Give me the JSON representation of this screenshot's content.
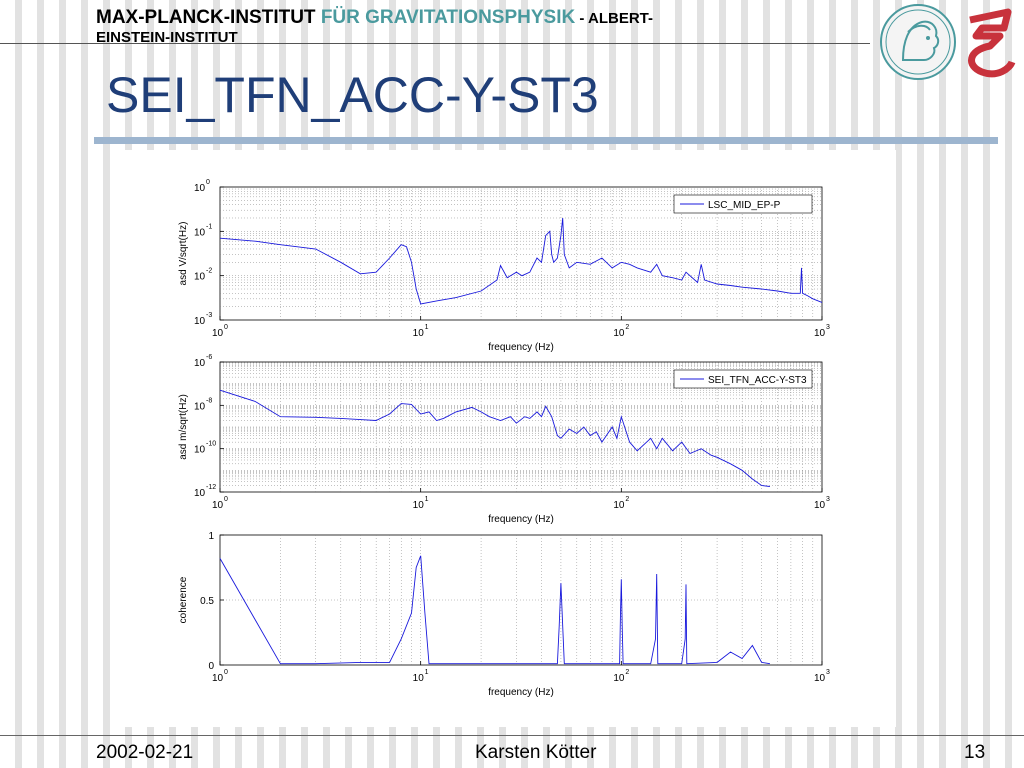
{
  "header": {
    "institute_part1": "MAX-PLANCK-INSTITUT ",
    "institute_part2": "FÜR GRAVITATIONSPHYSIK",
    "institute_part3": " - ALBERT-",
    "institute_part4": "EINSTEIN-INSTITUT"
  },
  "slide": {
    "title": "SEI_TFN_ACC-Y-ST3"
  },
  "footer": {
    "date": "2002-02-21",
    "author": "Karsten Kötter",
    "page": "13"
  },
  "colors": {
    "accent": "#4a9a9e",
    "title": "#1f3e78",
    "rule": "#9db5cf",
    "trace": "#1a1adc",
    "logo_red": "#c8323c"
  },
  "chart_data": [
    {
      "type": "line",
      "xscale": "log",
      "yscale": "log",
      "xlim": [
        1,
        1000
      ],
      "ylim": [
        0.001,
        1
      ],
      "x_ticks": [
        "10^0",
        "10^1",
        "10^2",
        "10^3"
      ],
      "y_ticks": [
        "10^-3",
        "10^-2",
        "10^-1",
        "10^0"
      ],
      "xlabel": "frequency (Hz)",
      "ylabel": "asd V/sqrt(Hz)",
      "grid": true,
      "legend": "top-right",
      "series": [
        {
          "name": "LSC_MID_EP-P",
          "x": [
            1,
            1.5,
            2,
            3,
            4,
            5,
            6,
            7,
            8,
            8.5,
            9,
            9.5,
            10,
            12,
            15,
            20,
            24,
            25,
            27,
            30,
            32,
            35,
            38,
            40,
            42,
            44,
            45,
            46,
            48,
            50,
            51,
            52,
            55,
            60,
            70,
            80,
            90,
            100,
            110,
            120,
            140,
            150,
            160,
            180,
            200,
            210,
            240,
            250,
            260,
            300,
            350,
            400,
            500,
            600,
            700,
            780,
            790,
            800,
            850,
            900,
            1000
          ],
          "y": [
            0.07,
            0.06,
            0.05,
            0.04,
            0.02,
            0.011,
            0.012,
            0.025,
            0.05,
            0.045,
            0.02,
            0.005,
            0.0023,
            0.0027,
            0.0032,
            0.0045,
            0.008,
            0.017,
            0.009,
            0.012,
            0.01,
            0.012,
            0.025,
            0.02,
            0.08,
            0.1,
            0.03,
            0.02,
            0.025,
            0.08,
            0.2,
            0.03,
            0.015,
            0.02,
            0.018,
            0.025,
            0.015,
            0.02,
            0.018,
            0.015,
            0.012,
            0.018,
            0.01,
            0.009,
            0.008,
            0.012,
            0.007,
            0.018,
            0.008,
            0.0065,
            0.006,
            0.0055,
            0.005,
            0.0045,
            0.004,
            0.004,
            0.015,
            0.004,
            0.0035,
            0.003,
            0.0025
          ]
        }
      ]
    },
    {
      "type": "line",
      "xscale": "log",
      "yscale": "log",
      "xlim": [
        1,
        1000
      ],
      "ylim": [
        1e-12,
        1e-06
      ],
      "x_ticks": [
        "10^0",
        "10^1",
        "10^2",
        "10^3"
      ],
      "y_ticks": [
        "10^-12",
        "10^-10",
        "10^-8",
        "10^-6"
      ],
      "xlabel": "frequency (Hz)",
      "ylabel": "asd m/sqrt(Hz)",
      "grid": true,
      "legend": "top-right",
      "series": [
        {
          "name": "SEI_TFN_ACC-Y-ST3",
          "x": [
            1,
            1.5,
            2,
            3,
            4,
            5,
            6,
            7,
            8,
            9,
            10,
            11,
            12,
            13,
            15,
            18,
            20,
            22,
            25,
            28,
            30,
            33,
            35,
            38,
            40,
            42,
            45,
            48,
            50,
            55,
            60,
            65,
            70,
            75,
            80,
            90,
            95,
            100,
            110,
            120,
            140,
            150,
            160,
            180,
            200,
            220,
            250,
            280,
            300,
            350,
            400,
            450,
            500,
            550
          ],
          "y": [
            5e-08,
            1.5e-08,
            3e-09,
            2.8e-09,
            2.5e-09,
            2.2e-09,
            2e-09,
            4e-09,
            1.2e-08,
            1.1e-08,
            4e-09,
            5e-09,
            2e-09,
            2.5e-09,
            5e-09,
            8e-09,
            5e-09,
            3e-09,
            2e-09,
            3e-09,
            1.5e-09,
            3e-09,
            2.5e-09,
            5e-09,
            3e-09,
            9e-09,
            3e-09,
            4e-10,
            3e-10,
            8e-10,
            5e-10,
            1e-09,
            4e-10,
            6e-10,
            2e-10,
            1e-09,
            3e-10,
            3e-09,
            2e-10,
            8e-11,
            3e-10,
            1e-10,
            3e-10,
            8e-11,
            2e-10,
            6e-11,
            1e-10,
            5e-11,
            4e-11,
            2e-11,
            1e-11,
            4e-12,
            2e-12,
            1.8e-12
          ]
        }
      ]
    },
    {
      "type": "line",
      "xscale": "log",
      "yscale": "linear",
      "xlim": [
        1,
        1000
      ],
      "ylim": [
        0,
        1
      ],
      "x_ticks": [
        "10^0",
        "10^1",
        "10^2",
        "10^3"
      ],
      "y_ticks": [
        "0",
        "0.5",
        "1"
      ],
      "xlabel": "frequency (Hz)",
      "ylabel": "coherence",
      "grid": true,
      "series": [
        {
          "x": [
            1,
            2,
            3,
            5,
            7,
            8,
            9,
            9.5,
            10,
            10.5,
            11,
            12,
            20,
            40,
            48,
            49,
            50,
            51,
            52,
            70,
            98,
            99,
            100,
            101,
            102,
            140,
            148,
            150,
            152,
            200,
            208,
            210,
            212,
            300,
            350,
            400,
            450,
            500,
            550
          ],
          "y": [
            0.82,
            0.01,
            0.01,
            0.02,
            0.02,
            0.2,
            0.4,
            0.75,
            0.84,
            0.4,
            0.01,
            0.01,
            0.01,
            0.01,
            0.01,
            0.3,
            0.63,
            0.3,
            0.01,
            0.01,
            0.01,
            0.4,
            0.66,
            0.3,
            0.01,
            0.01,
            0.2,
            0.7,
            0.01,
            0.01,
            0.2,
            0.62,
            0.01,
            0.02,
            0.1,
            0.05,
            0.15,
            0.02,
            0.01
          ]
        }
      ]
    }
  ]
}
